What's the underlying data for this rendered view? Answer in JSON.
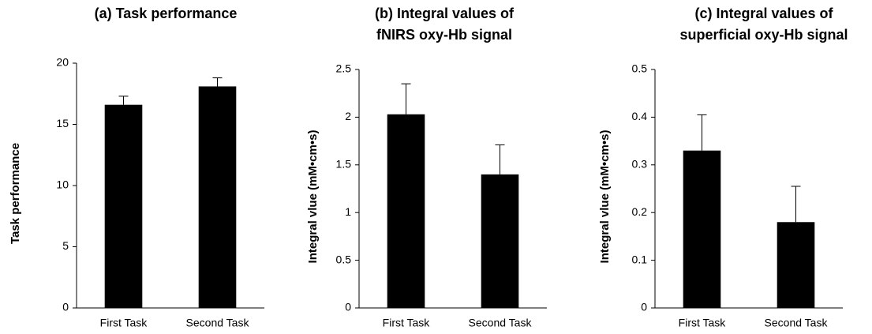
{
  "chart_data": [
    {
      "type": "bar",
      "title": [
        "(a) Task performance"
      ],
      "ylabel": "Task performance",
      "categories": [
        "First Task",
        "Second Task"
      ],
      "values": [
        16.6,
        18.1
      ],
      "errors": [
        0.7,
        0.7
      ],
      "color": "#000000",
      "ylim": [
        0,
        20
      ],
      "yticks": [
        0,
        5,
        10,
        15,
        20
      ]
    },
    {
      "type": "bar",
      "title": [
        "(b) Integral values of",
        "fNIRS oxy-Hb signal"
      ],
      "ylabel": "Integral vlue (mM•cm•s)",
      "categories": [
        "First Task",
        "Second Task"
      ],
      "values": [
        2.03,
        1.4
      ],
      "errors": [
        0.32,
        0.31
      ],
      "color": "#000000",
      "ylim": [
        0,
        2.5
      ],
      "yticks": [
        0,
        0.5,
        1,
        1.5,
        2,
        2.5
      ]
    },
    {
      "type": "bar",
      "title": [
        "(c) Integral values of",
        "superficial oxy-Hb signal"
      ],
      "ylabel": "Integral vlue (mM•cm•s)",
      "categories": [
        "First Task",
        "Second Task"
      ],
      "values": [
        0.33,
        0.18
      ],
      "errors": [
        0.075,
        0.075
      ],
      "color": "#000000",
      "ylim": [
        0,
        0.5
      ],
      "yticks": [
        0,
        0.1,
        0.2,
        0.3,
        0.4,
        0.5
      ]
    }
  ]
}
